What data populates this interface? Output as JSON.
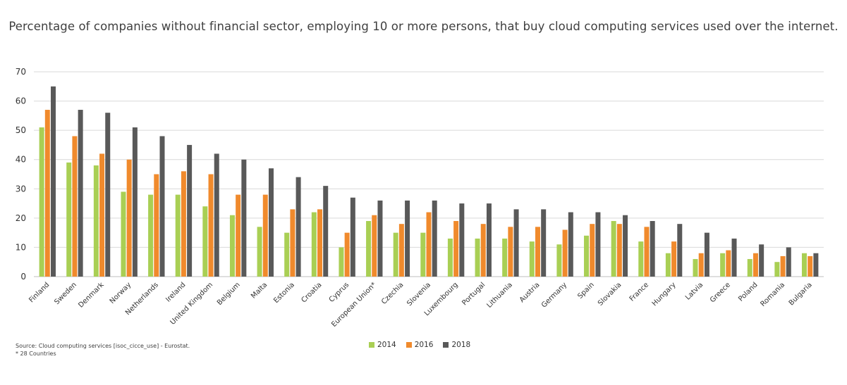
{
  "title": "Percentage of companies without financial sector, employing 10 or more persons, that buy cloud computing services used over the internet.",
  "source": "Source: Cloud computing services  [isoc_cicce_use] - Eurostat.",
  "note": "* 28 Countries",
  "colors": {
    "2014": "#a9cf54",
    "2016": "#f08a2c",
    "2018": "#595959",
    "grid": "#d9d9d9"
  },
  "chart_data": {
    "type": "bar",
    "title": "Percentage of companies without financial sector, employing 10 or more persons, that buy cloud computing services used over the internet.",
    "xlabel": "",
    "ylabel": "",
    "ylim": [
      0,
      70
    ],
    "yticks": [
      0,
      10,
      20,
      30,
      40,
      50,
      60,
      70
    ],
    "grid": true,
    "legend_position": "bottom",
    "categories": [
      "Finland",
      "Sweden",
      "Denmark",
      "Norway",
      "Netherlands",
      "Ireland",
      "United Kingdom",
      "Belgium",
      "Malta",
      "Estonia",
      "Croatia",
      "Cyprus",
      "European Union*",
      "Czechia",
      "Slovenia",
      "Luxembourg",
      "Portugal",
      "Lithuania",
      "Austria",
      "Germany",
      "Spain",
      "Slovakia",
      "France",
      "Hungary",
      "Latvia",
      "Greece",
      "Poland",
      "Romania",
      "Bulgaria"
    ],
    "series": [
      {
        "name": "2014",
        "values": [
          51,
          39,
          38,
          29,
          28,
          28,
          24,
          21,
          17,
          15,
          22,
          10,
          19,
          15,
          15,
          13,
          13,
          13,
          12,
          11,
          14,
          19,
          12,
          8,
          6,
          8,
          6,
          5,
          8
        ]
      },
      {
        "name": "2016",
        "values": [
          57,
          48,
          42,
          40,
          35,
          36,
          35,
          28,
          28,
          23,
          23,
          15,
          21,
          18,
          22,
          19,
          18,
          17,
          17,
          16,
          18,
          18,
          17,
          12,
          8,
          9,
          8,
          7,
          7
        ]
      },
      {
        "name": "2018",
        "values": [
          65,
          57,
          56,
          51,
          48,
          45,
          42,
          40,
          37,
          34,
          31,
          27,
          26,
          26,
          26,
          25,
          25,
          23,
          23,
          22,
          22,
          21,
          19,
          18,
          15,
          13,
          11,
          10,
          8
        ]
      }
    ]
  }
}
